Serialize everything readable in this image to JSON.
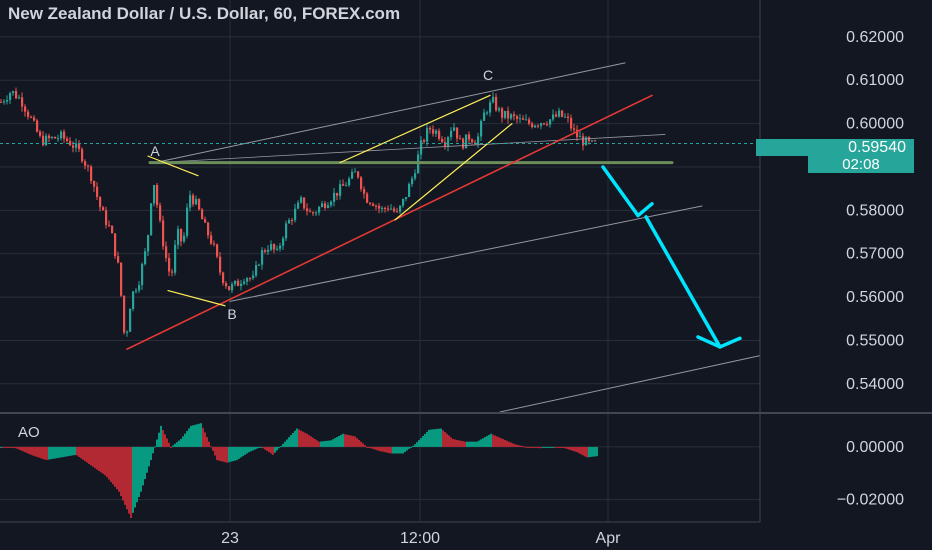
{
  "title": "New Zealand Dollar / U.S. Dollar, 60, FOREX.com",
  "indicator_label": "AO",
  "last_price": "0.59540",
  "countdown": "02:08",
  "colors": {
    "background": "#131722",
    "up": "#26a69a",
    "down": "#ef5350",
    "grid": "#2a2e39",
    "trendline_red": "#e53935",
    "wedge_yellow": "#ffee58",
    "arrow_cyan": "#00e5ff",
    "channel_gray": "#9598a1",
    "horizontal_level": "#6b8e5a"
  },
  "chart_data": [
    {
      "type": "candlestick",
      "title": "New Zealand Dollar / U.S. Dollar, 60, FOREX.com",
      "y_ticks": [
        "0.62000",
        "0.61000",
        "0.60000",
        "0.59000",
        "0.58000",
        "0.57000",
        "0.56000",
        "0.55000",
        "0.54000"
      ],
      "y_tick_values": [
        0.62,
        0.61,
        0.6,
        0.59,
        0.58,
        0.57,
        0.56,
        0.55,
        0.54
      ],
      "ylim": [
        0.5335,
        0.6285
      ],
      "x_ticks": [
        "23",
        "12:00",
        "Apr"
      ],
      "close_path": [
        [
          0,
          0.605
        ],
        [
          10,
          0.6075
        ],
        [
          20,
          0.6055
        ],
        [
          30,
          0.601
        ],
        [
          40,
          0.596
        ],
        [
          50,
          0.5965
        ],
        [
          60,
          0.597
        ],
        [
          70,
          0.5955
        ],
        [
          80,
          0.593
        ],
        [
          90,
          0.588
        ],
        [
          100,
          0.58
        ],
        [
          110,
          0.575
        ],
        [
          118,
          0.566
        ],
        [
          124,
          0.549
        ],
        [
          130,
          0.56
        ],
        [
          138,
          0.564
        ],
        [
          146,
          0.572
        ],
        [
          152,
          0.588
        ],
        [
          158,
          0.578
        ],
        [
          164,
          0.57
        ],
        [
          170,
          0.564
        ],
        [
          176,
          0.575
        ],
        [
          182,
          0.572
        ],
        [
          188,
          0.584
        ],
        [
          196,
          0.581
        ],
        [
          204,
          0.576
        ],
        [
          212,
          0.572
        ],
        [
          220,
          0.565
        ],
        [
          228,
          0.562
        ],
        [
          236,
          0.563
        ],
        [
          244,
          0.565
        ],
        [
          252,
          0.564
        ],
        [
          260,
          0.57
        ],
        [
          268,
          0.572
        ],
        [
          276,
          0.57
        ],
        [
          284,
          0.576
        ],
        [
          292,
          0.579
        ],
        [
          300,
          0.582
        ],
        [
          310,
          0.579
        ],
        [
          320,
          0.581
        ],
        [
          330,
          0.583
        ],
        [
          340,
          0.585
        ],
        [
          348,
          0.587
        ],
        [
          356,
          0.589
        ],
        [
          364,
          0.583
        ],
        [
          372,
          0.582
        ],
        [
          380,
          0.58
        ],
        [
          388,
          0.581
        ],
        [
          396,
          0.579
        ],
        [
          404,
          0.583
        ],
        [
          412,
          0.588
        ],
        [
          420,
          0.595
        ],
        [
          428,
          0.599
        ],
        [
          436,
          0.598
        ],
        [
          444,
          0.596
        ],
        [
          452,
          0.6
        ],
        [
          460,
          0.595
        ],
        [
          468,
          0.597
        ],
        [
          476,
          0.596
        ],
        [
          484,
          0.603
        ],
        [
          492,
          0.605
        ],
        [
          500,
          0.602
        ],
        [
          510,
          0.6015
        ],
        [
          520,
          0.6005
        ],
        [
          530,
          0.6
        ],
        [
          540,
          0.6005
        ],
        [
          550,
          0.601
        ],
        [
          558,
          0.602
        ],
        [
          566,
          0.601
        ],
        [
          574,
          0.5975
        ],
        [
          582,
          0.596
        ],
        [
          590,
          0.595
        ],
        [
          596,
          0.5954
        ]
      ],
      "annotations": [
        {
          "label": "A",
          "x": 155,
          "y": 0.5925
        },
        {
          "label": "B",
          "x": 232,
          "y": 0.555
        },
        {
          "label": "C",
          "x": 488,
          "y": 0.61
        }
      ],
      "level": 0.591
    },
    {
      "type": "histogram",
      "title": "AO",
      "y_ticks": [
        "0.00000",
        "−0.02000"
      ],
      "y_tick_values": [
        0.0,
        -0.02
      ],
      "ylim": [
        -0.0285,
        0.0125
      ],
      "ao_path": [
        [
          0,
          0.0
        ],
        [
          15,
          -0.0005
        ],
        [
          30,
          -0.003
        ],
        [
          45,
          -0.005
        ],
        [
          60,
          -0.004
        ],
        [
          75,
          -0.003
        ],
        [
          90,
          -0.007
        ],
        [
          105,
          -0.011
        ],
        [
          118,
          -0.017
        ],
        [
          130,
          -0.027
        ],
        [
          140,
          -0.017
        ],
        [
          150,
          -0.005
        ],
        [
          160,
          0.008
        ],
        [
          170,
          0.0
        ],
        [
          180,
          0.003
        ],
        [
          190,
          0.008
        ],
        [
          200,
          0.009
        ],
        [
          208,
          0.002
        ],
        [
          216,
          -0.005
        ],
        [
          226,
          -0.006
        ],
        [
          236,
          -0.005
        ],
        [
          248,
          -0.002
        ],
        [
          260,
          0.0
        ],
        [
          272,
          -0.003
        ],
        [
          284,
          0.002
        ],
        [
          296,
          0.007
        ],
        [
          306,
          0.005
        ],
        [
          318,
          0.002
        ],
        [
          330,
          0.0025
        ],
        [
          342,
          0.005
        ],
        [
          354,
          0.004
        ],
        [
          366,
          0.0
        ],
        [
          378,
          -0.0015
        ],
        [
          390,
          -0.0025
        ],
        [
          402,
          -0.0025
        ],
        [
          414,
          0.001
        ],
        [
          428,
          0.0065
        ],
        [
          440,
          0.007
        ],
        [
          452,
          0.003
        ],
        [
          464,
          0.002
        ],
        [
          476,
          0.002
        ],
        [
          490,
          0.005
        ],
        [
          502,
          0.003
        ],
        [
          514,
          0.001
        ],
        [
          526,
          0.0
        ],
        [
          540,
          -0.0005
        ],
        [
          552,
          0.0
        ],
        [
          564,
          -0.0005
        ],
        [
          576,
          -0.002
        ],
        [
          586,
          -0.004
        ],
        [
          596,
          -0.0035
        ]
      ]
    }
  ]
}
